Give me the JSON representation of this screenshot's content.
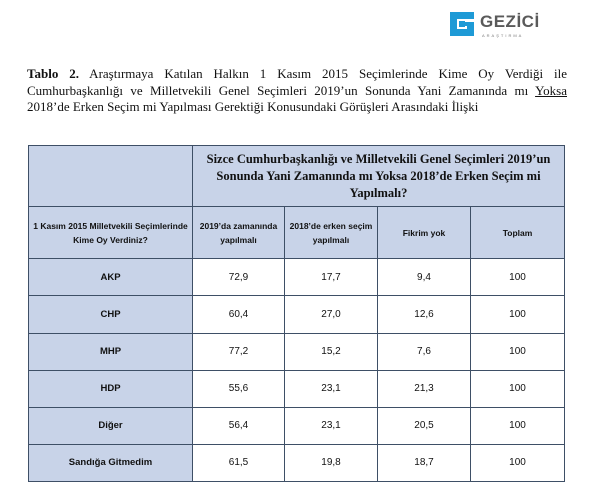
{
  "logo": {
    "name": "GEZİCİ",
    "sub": "ARAŞTIRMA"
  },
  "caption": {
    "label": "Tablo 2.",
    "text_before": " Araştırmaya Katılan Halkın 1 Kasım 2015 Seçimlerinde Kime Oy Verdiği ile Cumhurbaşkanlığı ve Milletvekili Genel Seçimleri 2019’un Sonunda Yani Zamanında mı ",
    "underlined": "Yoksa",
    "text_after": " 2018’de Erken Seçim mi Yapılması Gerektiği Konusundaki Görüşleri Arasındaki İlişki"
  },
  "table": {
    "question": "Sizce Cumhurbaşkanlığı ve Milletvekili Genel Seçimleri 2019’un Sonunda Yani Zamanında mı Yoksa 2018’de Erken Seçim mi Yapılmalı?",
    "row_header": "1 Kasım 2015 Milletvekili Seçimlerinde Kime Oy Verdiniz?",
    "columns": [
      "2019’da zamanında yapılmalı",
      "2018’de erken seçim yapılmalı",
      "Fikrim yok",
      "Toplam"
    ],
    "rows": [
      {
        "party": "AKP",
        "values": [
          "72,9",
          "17,7",
          "9,4",
          "100"
        ]
      },
      {
        "party": "CHP",
        "values": [
          "60,4",
          "27,0",
          "12,6",
          "100"
        ]
      },
      {
        "party": "MHP",
        "values": [
          "77,2",
          "15,2",
          "7,6",
          "100"
        ]
      },
      {
        "party": "HDP",
        "values": [
          "55,6",
          "23,1",
          "21,3",
          "100"
        ]
      },
      {
        "party": "Diğer",
        "values": [
          "56,4",
          "23,1",
          "20,5",
          "100"
        ]
      },
      {
        "party": "Sandığa Gitmedim",
        "values": [
          "61,5",
          "19,8",
          "18,7",
          "100"
        ]
      }
    ]
  },
  "colors": {
    "header_bg": "#c8d3e8",
    "border": "#3e4f66",
    "logo_blue": "#1e9ad6"
  }
}
